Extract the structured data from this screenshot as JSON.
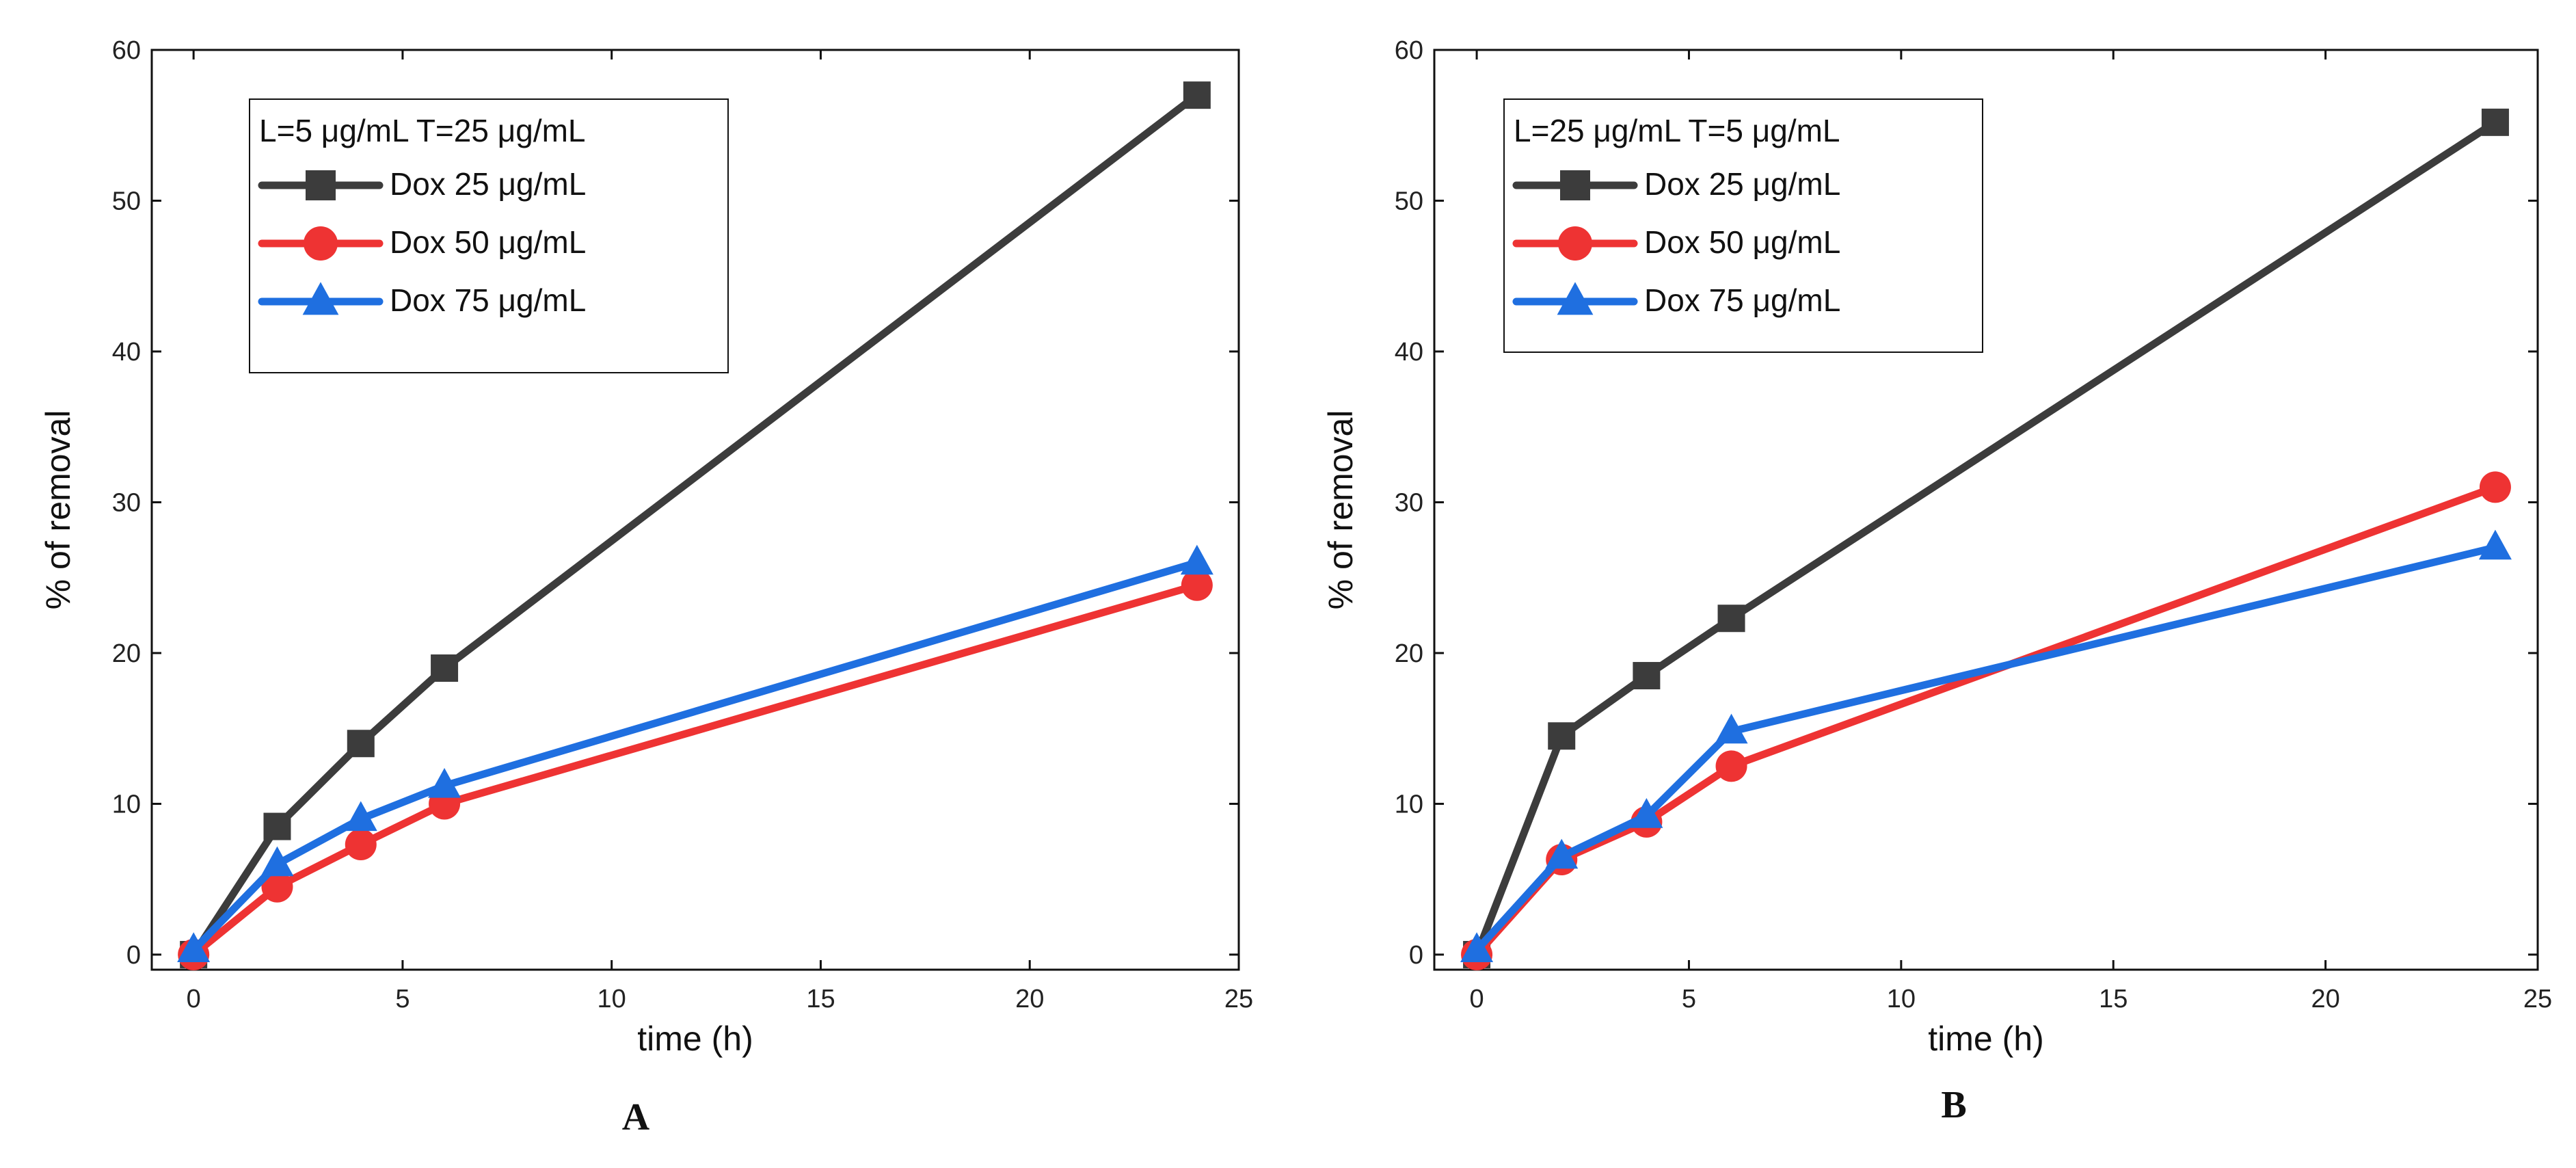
{
  "chart_data": [
    {
      "type": "line",
      "panel_label": "A",
      "legend_title": "L=5 μg/mL T=25 μg/mL",
      "xlabel": "time (h)",
      "ylabel": "% of removal",
      "xlim": [
        -1,
        25
      ],
      "ylim": [
        -1,
        60
      ],
      "xticks": [
        0,
        5,
        10,
        15,
        20,
        25
      ],
      "yticks": [
        0,
        10,
        20,
        30,
        40,
        50,
        60
      ],
      "x": [
        0,
        2,
        4,
        6,
        24
      ],
      "legend_position": "top-left",
      "series": [
        {
          "name": "Dox 25 μg/mL",
          "color": "#3c3c3c",
          "marker": "square",
          "values": [
            0,
            8.5,
            14,
            19,
            57
          ]
        },
        {
          "name": "Dox 50 μg/mL",
          "color": "#ee3333",
          "marker": "circle",
          "values": [
            0,
            4.5,
            7.3,
            10,
            24.5
          ]
        },
        {
          "name": "Dox 75 μg/mL",
          "color": "#1f6fe0",
          "marker": "triangle",
          "values": [
            0.3,
            6,
            9,
            11.2,
            26
          ]
        }
      ]
    },
    {
      "type": "line",
      "panel_label": "B",
      "legend_title": "L=25 μg/mL T=5 μg/mL",
      "xlabel": "time (h)",
      "ylabel": "% of removal",
      "xlim": [
        -1,
        25
      ],
      "ylim": [
        -1,
        60
      ],
      "xticks": [
        0,
        5,
        10,
        15,
        20,
        25
      ],
      "yticks": [
        0,
        10,
        20,
        30,
        40,
        50,
        60
      ],
      "x": [
        0,
        2,
        4,
        6,
        24
      ],
      "legend_position": "top-left",
      "series": [
        {
          "name": "Dox 25 μg/mL",
          "color": "#3c3c3c",
          "marker": "square",
          "values": [
            0,
            14.5,
            18.5,
            22.3,
            55.2
          ]
        },
        {
          "name": "Dox 50 μg/mL",
          "color": "#ee3333",
          "marker": "circle",
          "values": [
            0,
            6.3,
            8.8,
            12.5,
            31
          ]
        },
        {
          "name": "Dox 75 μg/mL",
          "color": "#1f6fe0",
          "marker": "triangle",
          "values": [
            0.3,
            6.5,
            9.2,
            14.8,
            27
          ]
        }
      ]
    }
  ]
}
